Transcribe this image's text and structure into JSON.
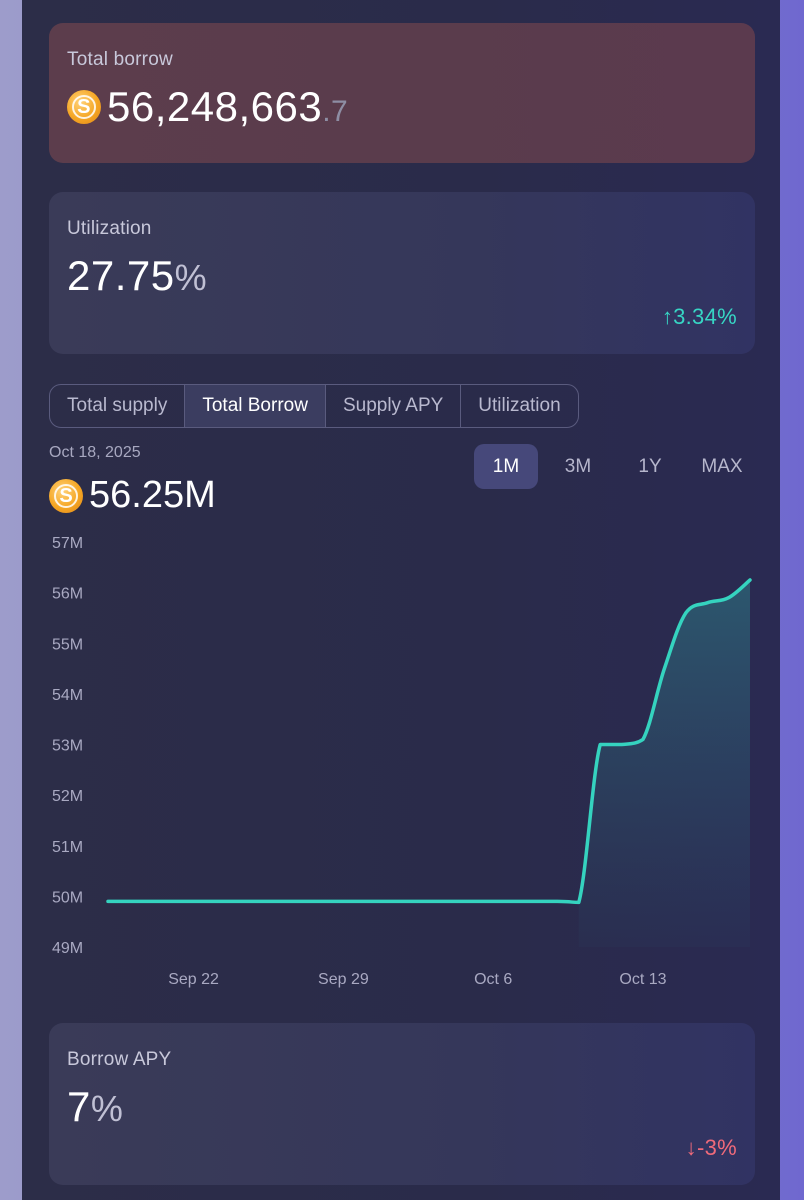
{
  "total_borrow": {
    "label": "Total borrow",
    "value_main": "56,248,663",
    "value_decimal": ".7",
    "coin_icon": "stablecoin-icon"
  },
  "utilization": {
    "label": "Utilization",
    "value": "27.75",
    "unit": "%",
    "change": "↑3.34%",
    "change_color": "#37d6c4"
  },
  "tabs": [
    {
      "label": "Total supply",
      "active": false
    },
    {
      "label": "Total Borrow",
      "active": true
    },
    {
      "label": "Supply APY",
      "active": false
    },
    {
      "label": "Utilization",
      "active": false
    }
  ],
  "chart_header": {
    "date": "Oct 18, 2025",
    "value": "56.25M"
  },
  "ranges": [
    {
      "label": "1M",
      "active": true
    },
    {
      "label": "3M",
      "active": false
    },
    {
      "label": "1Y",
      "active": false
    },
    {
      "label": "MAX",
      "active": false
    }
  ],
  "borrow_apy": {
    "label": "Borrow APY",
    "value": "7",
    "unit": "%",
    "change": "↓-3%",
    "change_color": "#ef6a7a"
  },
  "chart_data": {
    "type": "area",
    "y_ticks": [
      "57M",
      "56M",
      "55M",
      "54M",
      "53M",
      "52M",
      "51M",
      "50M",
      "49M"
    ],
    "x_ticks": [
      "Sep 22",
      "Sep 29",
      "Oct 6",
      "Oct 13"
    ],
    "ylim": [
      49,
      57
    ],
    "x": [
      "2025-09-18",
      "2025-09-22",
      "2025-09-29",
      "2025-10-06",
      "2025-10-09",
      "2025-10-10",
      "2025-10-11",
      "2025-10-12",
      "2025-10-13",
      "2025-10-14",
      "2025-10-15",
      "2025-10-16",
      "2025-10-17",
      "2025-10-18"
    ],
    "values": [
      49.9,
      49.9,
      49.9,
      49.9,
      49.9,
      49.88,
      53.0,
      53.0,
      53.1,
      54.5,
      55.6,
      55.8,
      55.9,
      56.25
    ],
    "line_color": "#35d3bf"
  }
}
